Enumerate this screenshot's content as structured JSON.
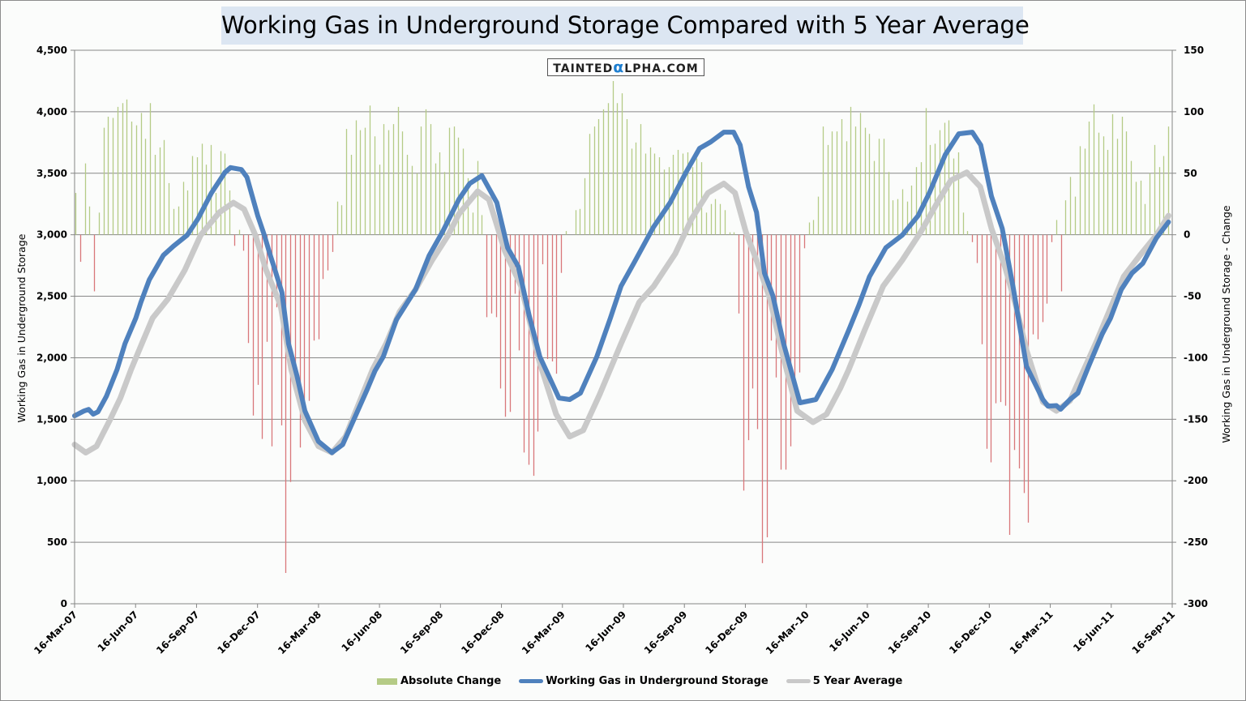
{
  "chart_data": {
    "type": "bar+line",
    "title": "Working Gas in Underground Storage Compared with 5 Year Average",
    "watermark": "TaintedAlpha.com",
    "x_unit": "weeks since 16-Mar-07",
    "x_range": [
      0,
      235
    ],
    "x_tick_labels": [
      "16-Mar-07",
      "16-Jun-07",
      "16-Sep-07",
      "16-Dec-07",
      "16-Mar-08",
      "16-Jun-08",
      "16-Sep-08",
      "16-Dec-08",
      "16-Mar-09",
      "16-Jun-09",
      "16-Sep-09",
      "16-Dec-09",
      "16-Mar-10",
      "16-Jun-10",
      "16-Sep-10",
      "16-Dec-10",
      "16-Mar-11",
      "16-Jun-11",
      "16-Sep-11"
    ],
    "y_left": {
      "label": "Working Gas in Underground Storage",
      "range": [
        0,
        4500
      ],
      "ticks": [
        0,
        500,
        1000,
        1500,
        2000,
        2500,
        3000,
        3500,
        4000,
        4500
      ],
      "tick_labels": [
        "0",
        "500",
        "1,000",
        "1,500",
        "2,000",
        "2,500",
        "3,000",
        "3,500",
        "4,000",
        "4,500"
      ]
    },
    "y_right": {
      "label": "Working Gas in Underground Storage - Change",
      "range": [
        -300,
        150
      ],
      "ticks": [
        -300,
        -250,
        -200,
        -150,
        -100,
        -50,
        0,
        50,
        100,
        150
      ],
      "tick_labels": [
        "-300",
        "-250",
        "-200",
        "-150",
        "-100",
        "-50",
        "0",
        "50",
        "100",
        "150"
      ]
    },
    "grid": true,
    "legend_position": "bottom",
    "colors": {
      "positive": "#b5cb86",
      "negative": "#d9777a",
      "storage": "#4f81bd",
      "average": "#c9c9c9"
    },
    "series": [
      {
        "name": "Absolute Change",
        "type": "bar",
        "axis": "right",
        "values": [
          34,
          -22,
          58,
          23,
          -46,
          18,
          87,
          96,
          95,
          104,
          107,
          110,
          92,
          89,
          99,
          78,
          107,
          65,
          71,
          77,
          42,
          21,
          23,
          43,
          36,
          64,
          63,
          74,
          57,
          73,
          34,
          68,
          66,
          36,
          -9,
          4,
          -13,
          -88,
          -147,
          -122,
          -166,
          -87,
          -172,
          -59,
          -155,
          -275,
          -201,
          -120,
          -173,
          -152,
          -135,
          -86,
          -85,
          -36,
          -29,
          -14,
          27,
          24,
          86,
          65,
          93,
          85,
          87,
          105,
          80,
          57,
          90,
          85,
          90,
          104,
          84,
          65,
          56,
          50,
          88,
          102,
          90,
          58,
          67,
          51,
          87,
          88,
          79,
          70,
          46,
          18,
          60,
          16,
          -67,
          -64,
          -67,
          -125,
          -148,
          -144,
          -48,
          -94,
          -177,
          -187,
          -196,
          -160,
          -24,
          -101,
          -103,
          -113,
          -31,
          3,
          0,
          20,
          21,
          46,
          82,
          88,
          94,
          102,
          107,
          125,
          107,
          115,
          94,
          70,
          75,
          90,
          66,
          71,
          66,
          63,
          53,
          55,
          65,
          69,
          66,
          67,
          55,
          62,
          59,
          18,
          25,
          29,
          25,
          20,
          2,
          2,
          -64,
          -208,
          -167,
          -125,
          -158,
          -267,
          -246,
          -86,
          -116,
          -191,
          -191,
          -172,
          -116,
          -112,
          -11,
          10,
          12,
          31,
          88,
          73,
          84,
          84,
          94,
          76,
          104,
          88,
          99,
          87,
          82,
          60,
          78,
          78,
          51,
          28,
          29,
          37,
          27,
          40,
          55,
          59,
          103,
          73,
          74,
          85,
          91,
          93,
          62,
          67,
          18,
          3,
          -6,
          -23,
          -89,
          -174,
          -185,
          -137,
          -136,
          -139,
          -244,
          -175,
          -190,
          -210,
          -234,
          -81,
          -85,
          -71,
          -56,
          -6,
          12,
          -46,
          28,
          47,
          31,
          72,
          70,
          92,
          106,
          83,
          80,
          69,
          98,
          78,
          96,
          84,
          60,
          43,
          44,
          25,
          50,
          73,
          55,
          64,
          88
        ]
      },
      {
        "name": "Working Gas in Underground Storage",
        "type": "line",
        "axis": "left",
        "points": [
          [
            0,
            1528
          ],
          [
            2,
            1567
          ],
          [
            3,
            1580
          ],
          [
            4,
            1541
          ],
          [
            5,
            1560
          ],
          [
            6.8,
            1686
          ],
          [
            9.1,
            1904
          ],
          [
            10.8,
            2115
          ],
          [
            13.1,
            2322
          ],
          [
            14.2,
            2451
          ],
          [
            16,
            2635
          ],
          [
            19,
            2833
          ],
          [
            21.2,
            2908
          ],
          [
            24.1,
            2997
          ],
          [
            26.4,
            3129
          ],
          [
            29.3,
            3340
          ],
          [
            32.2,
            3507
          ],
          [
            33.4,
            3546
          ],
          [
            35.7,
            3530
          ],
          [
            36.9,
            3468
          ],
          [
            39.2,
            3155
          ],
          [
            40.6,
            3000
          ],
          [
            41.8,
            2846
          ],
          [
            42.9,
            2714
          ],
          [
            44.4,
            2530
          ],
          [
            45.8,
            2115
          ],
          [
            47.6,
            1854
          ],
          [
            49.3,
            1568
          ],
          [
            52.2,
            1320
          ],
          [
            55.1,
            1229
          ],
          [
            57.4,
            1294
          ],
          [
            60.3,
            1541
          ],
          [
            62.6,
            1739
          ],
          [
            64.3,
            1892
          ],
          [
            66.1,
            2009
          ],
          [
            68.9,
            2309
          ],
          [
            73,
            2555
          ],
          [
            75.9,
            2830
          ],
          [
            78.8,
            3025
          ],
          [
            82.3,
            3290
          ],
          [
            84.6,
            3416
          ],
          [
            87.2,
            3481
          ],
          [
            90.4,
            3261
          ],
          [
            92.7,
            2895
          ],
          [
            95,
            2740
          ],
          [
            97.3,
            2348
          ],
          [
            99.6,
            2009
          ],
          [
            103.7,
            1673
          ],
          [
            106,
            1660
          ],
          [
            108.3,
            1713
          ],
          [
            111.8,
            2009
          ],
          [
            114.7,
            2322
          ],
          [
            117,
            2582
          ],
          [
            119.9,
            2780
          ],
          [
            123.9,
            3060
          ],
          [
            127.5,
            3261
          ],
          [
            130.9,
            3507
          ],
          [
            133.8,
            3702
          ],
          [
            136.2,
            3755
          ],
          [
            139,
            3834
          ],
          [
            141.1,
            3834
          ],
          [
            142.5,
            3729
          ],
          [
            144.3,
            3390
          ],
          [
            146,
            3182
          ],
          [
            147.7,
            2688
          ],
          [
            149.5,
            2503
          ],
          [
            151.8,
            2115
          ],
          [
            155.3,
            1634
          ],
          [
            158.7,
            1660
          ],
          [
            162.2,
            1904
          ],
          [
            165.7,
            2220
          ],
          [
            167.9,
            2426
          ],
          [
            170.2,
            2660
          ],
          [
            173.7,
            2895
          ],
          [
            177.2,
            2997
          ],
          [
            180.6,
            3155
          ],
          [
            183,
            3340
          ],
          [
            186.4,
            3650
          ],
          [
            189.3,
            3821
          ],
          [
            192.2,
            3834
          ],
          [
            194,
            3729
          ],
          [
            196.3,
            3313
          ],
          [
            198.6,
            3051
          ],
          [
            200.9,
            2582
          ],
          [
            203.8,
            1931
          ],
          [
            207.3,
            1660
          ],
          [
            208.4,
            1607
          ],
          [
            210.2,
            1611
          ],
          [
            211.1,
            1581
          ],
          [
            213.1,
            1660
          ],
          [
            214.8,
            1713
          ],
          [
            217.1,
            1931
          ],
          [
            220,
            2193
          ],
          [
            221.8,
            2322
          ],
          [
            224.1,
            2555
          ],
          [
            226.4,
            2688
          ],
          [
            228.7,
            2767
          ],
          [
            231.6,
            2973
          ],
          [
            234.2,
            3103
          ]
        ]
      },
      {
        "name": "5 Year Average",
        "type": "line",
        "axis": "left",
        "points": [
          [
            0,
            1294
          ],
          [
            2.4,
            1229
          ],
          [
            4.7,
            1281
          ],
          [
            7.5,
            1489
          ],
          [
            9.8,
            1673
          ],
          [
            12.1,
            1904
          ],
          [
            14.4,
            2115
          ],
          [
            16.7,
            2322
          ],
          [
            20,
            2478
          ],
          [
            23.6,
            2713
          ],
          [
            27,
            2997
          ],
          [
            31,
            3182
          ],
          [
            34,
            3261
          ],
          [
            36.3,
            3208
          ],
          [
            38.7,
            2997
          ],
          [
            41,
            2714
          ],
          [
            44.1,
            2426
          ],
          [
            46.4,
            1904
          ],
          [
            49.3,
            1489
          ],
          [
            52.2,
            1281
          ],
          [
            55.1,
            1229
          ],
          [
            58,
            1359
          ],
          [
            63.8,
            1904
          ],
          [
            66.7,
            2115
          ],
          [
            69.6,
            2375
          ],
          [
            73,
            2555
          ],
          [
            76.5,
            2790
          ],
          [
            80,
            2997
          ],
          [
            82.3,
            3170
          ],
          [
            86.3,
            3353
          ],
          [
            88.7,
            3287
          ],
          [
            92.1,
            2869
          ],
          [
            95.6,
            2582
          ],
          [
            99.6,
            1957
          ],
          [
            103.1,
            1541
          ],
          [
            106,
            1359
          ],
          [
            108.9,
            1410
          ],
          [
            112.4,
            1700
          ],
          [
            117,
            2115
          ],
          [
            120.9,
            2452
          ],
          [
            124,
            2582
          ],
          [
            128.6,
            2846
          ],
          [
            132.1,
            3129
          ],
          [
            135.6,
            3340
          ],
          [
            139,
            3416
          ],
          [
            141.4,
            3340
          ],
          [
            143.7,
            3025
          ],
          [
            146,
            2793
          ],
          [
            148.9,
            2478
          ],
          [
            151.2,
            2088
          ],
          [
            154.7,
            1568
          ],
          [
            158.1,
            1476
          ],
          [
            161,
            1541
          ],
          [
            163.9,
            1749
          ],
          [
            165.7,
            1900
          ],
          [
            169.1,
            2220
          ],
          [
            173.1,
            2582
          ],
          [
            177.2,
            2793
          ],
          [
            181.2,
            3025
          ],
          [
            184.7,
            3261
          ],
          [
            187.6,
            3442
          ],
          [
            191,
            3507
          ],
          [
            193.9,
            3390
          ],
          [
            196.3,
            3051
          ],
          [
            199.2,
            2740
          ],
          [
            201.5,
            2426
          ],
          [
            203.8,
            2062
          ],
          [
            207.3,
            1640
          ],
          [
            210.2,
            1568
          ],
          [
            213.1,
            1650
          ],
          [
            218.9,
            2141
          ],
          [
            224.6,
            2660
          ],
          [
            228.1,
            2833
          ],
          [
            231.6,
            2997
          ],
          [
            234.2,
            3155
          ]
        ]
      }
    ]
  }
}
